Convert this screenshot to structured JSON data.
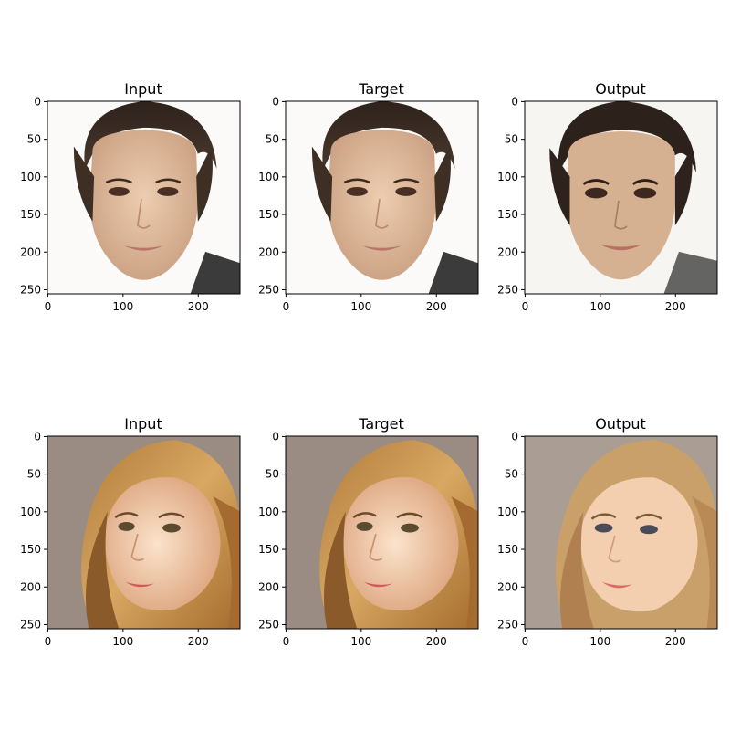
{
  "figure": {
    "rows": [
      {
        "subject": "short-dark-hair-woman-portrait",
        "panels": [
          {
            "title": "Input",
            "image": "face-photo-short-hair",
            "photo_kind": "input"
          },
          {
            "title": "Target",
            "image": "face-photo-short-hair",
            "photo_kind": "target"
          },
          {
            "title": "Output",
            "image": "face-photo-short-hair-generated",
            "photo_kind": "output"
          }
        ]
      },
      {
        "subject": "long-blonde-hair-woman-portrait",
        "panels": [
          {
            "title": "Input",
            "image": "face-photo-blonde-hair",
            "photo_kind": "input"
          },
          {
            "title": "Target",
            "image": "face-photo-blonde-hair",
            "photo_kind": "target"
          },
          {
            "title": "Output",
            "image": "face-photo-blonde-hair-generated",
            "photo_kind": "output"
          }
        ]
      }
    ],
    "x_ticks": [
      "0",
      "100",
      "200"
    ],
    "y_ticks": [
      "0",
      "50",
      "100",
      "150",
      "200",
      "250"
    ],
    "x_tick_values": [
      0,
      100,
      200
    ],
    "y_tick_values": [
      0,
      50,
      100,
      150,
      200,
      250
    ],
    "image_extent": [
      256,
      256
    ],
    "colors": {
      "axes": "#000000",
      "skin_light": "#e6c2a2",
      "hair_dark": "#3a2c24",
      "bg_white": "#fbfaf8",
      "bg_taupe": "#9a8c82",
      "hair_blonde": "#c8954f",
      "skin_warm": "#f0c6a4",
      "lips": "#c9706a"
    }
  }
}
